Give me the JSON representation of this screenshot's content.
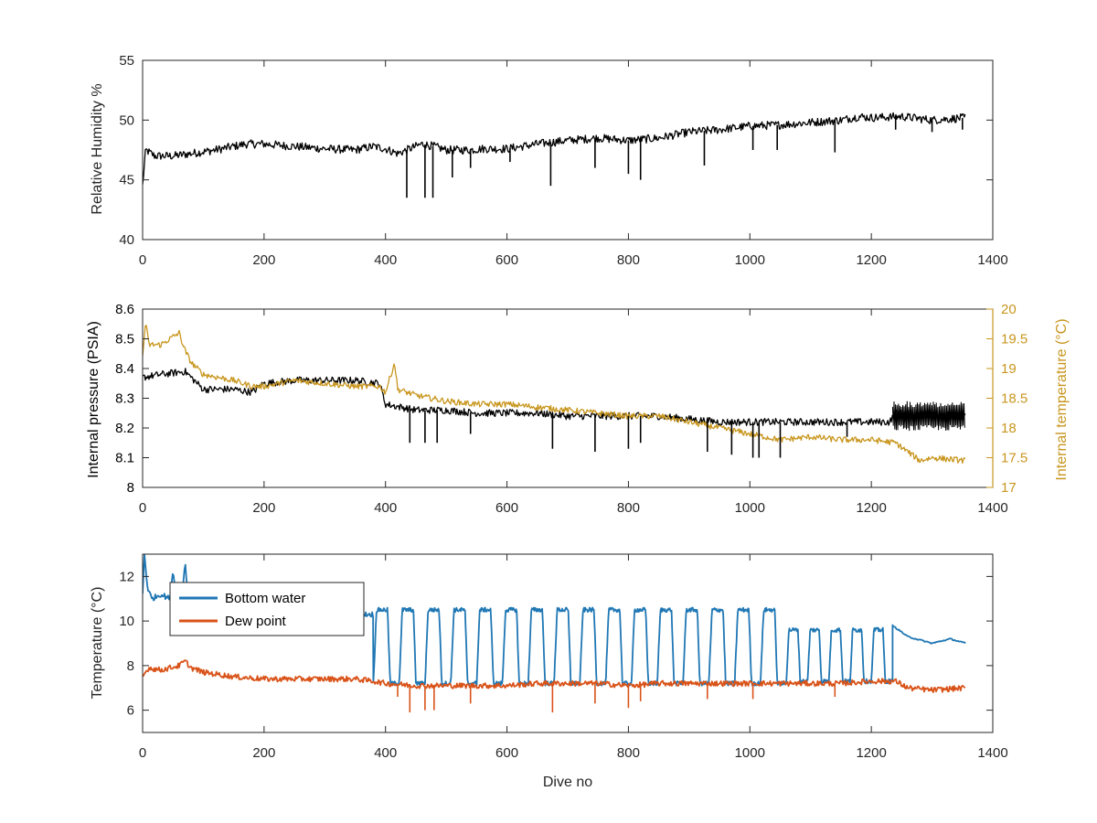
{
  "chart_data": [
    {
      "type": "line",
      "xlabel": "",
      "ylabel": "Relative Humidity %",
      "xlim": [
        0,
        1400
      ],
      "ylim": [
        40,
        55
      ],
      "xticks": [
        "0",
        "200",
        "400",
        "600",
        "800",
        "1000",
        "1200",
        "1400"
      ],
      "yticks": [
        "40",
        "45",
        "50",
        "55"
      ],
      "grid": false,
      "series": [
        {
          "color": "#000000",
          "x": [
            0,
            5,
            20,
            50,
            80,
            120,
            170,
            200,
            250,
            300,
            350,
            380,
            400,
            420,
            440,
            460,
            480,
            500,
            540,
            560,
            600,
            650,
            700,
            750,
            800,
            850,
            900,
            950,
            1000,
            1050,
            1100,
            1150,
            1180,
            1200,
            1250,
            1300,
            1355
          ],
          "y": [
            44.5,
            47.5,
            47.0,
            47.0,
            47.2,
            47.5,
            48.0,
            48.0,
            47.8,
            47.6,
            47.5,
            47.8,
            47.6,
            47.2,
            47.6,
            48.0,
            47.8,
            47.5,
            47.5,
            47.6,
            47.6,
            48.0,
            48.3,
            48.5,
            48.3,
            48.5,
            49.0,
            49.2,
            49.5,
            49.6,
            49.8,
            50.0,
            50.3,
            50.2,
            50.3,
            50.0,
            50.2
          ]
        }
      ],
      "spikes": [
        {
          "x": 435,
          "y": 43.5
        },
        {
          "x": 465,
          "y": 43.5
        },
        {
          "x": 478,
          "y": 43.5
        },
        {
          "x": 510,
          "y": 45.2
        },
        {
          "x": 540,
          "y": 46.0
        },
        {
          "x": 605,
          "y": 46.5
        },
        {
          "x": 672,
          "y": 44.5
        },
        {
          "x": 745,
          "y": 46.0
        },
        {
          "x": 800,
          "y": 45.5
        },
        {
          "x": 820,
          "y": 45.0
        },
        {
          "x": 925,
          "y": 46.2
        },
        {
          "x": 1005,
          "y": 47.5
        },
        {
          "x": 1045,
          "y": 47.5
        },
        {
          "x": 1140,
          "y": 47.3
        },
        {
          "x": 1240,
          "y": 49.2
        },
        {
          "x": 1300,
          "y": 49.0
        },
        {
          "x": 1350,
          "y": 49.2
        }
      ]
    },
    {
      "type": "line",
      "xlabel": "",
      "ylabel": "Internal pressure (PSIA)",
      "ylabel_right": "Internal temperature (°C)",
      "xlim": [
        0,
        1400
      ],
      "ylim": [
        8,
        8.6
      ],
      "ylim_right": [
        17,
        20
      ],
      "xticks": [
        "0",
        "200",
        "400",
        "600",
        "800",
        "1000",
        "1200",
        "1400"
      ],
      "yticks": [
        "8",
        "8.1",
        "8.2",
        "8.3",
        "8.4",
        "8.5",
        "8.6"
      ],
      "yticks_right": [
        "17",
        "17.5",
        "18",
        "18.5",
        "19",
        "19.5",
        "20"
      ],
      "grid": false,
      "series": [
        {
          "axis": "left",
          "color": "#000000",
          "x": [
            0,
            30,
            70,
            100,
            150,
            180,
            200,
            250,
            300,
            350,
            390,
            400,
            450,
            500,
            550,
            600,
            650,
            700,
            750,
            800,
            850,
            900,
            950,
            1000,
            1050,
            1100,
            1150,
            1200,
            1230,
            1240,
            1355
          ],
          "y": [
            8.37,
            8.38,
            8.39,
            8.33,
            8.33,
            8.32,
            8.35,
            8.36,
            8.36,
            8.36,
            8.35,
            8.28,
            8.26,
            8.26,
            8.25,
            8.25,
            8.25,
            8.24,
            8.24,
            8.24,
            8.24,
            8.23,
            8.22,
            8.22,
            8.22,
            8.22,
            8.22,
            8.22,
            8.22,
            8.25,
            8.24
          ]
        },
        {
          "axis": "right",
          "color": "#C8961E",
          "x": [
            0,
            5,
            10,
            30,
            60,
            70,
            80,
            100,
            150,
            180,
            200,
            250,
            300,
            350,
            390,
            400,
            415,
            420,
            450,
            500,
            550,
            600,
            650,
            700,
            750,
            800,
            850,
            900,
            950,
            1000,
            1050,
            1100,
            1150,
            1200,
            1240,
            1260,
            1280,
            1300,
            1355
          ],
          "y": [
            19.2,
            19.8,
            19.4,
            19.4,
            19.6,
            19.3,
            19.1,
            18.9,
            18.8,
            18.7,
            18.7,
            18.8,
            18.75,
            18.7,
            18.7,
            18.6,
            19.1,
            18.65,
            18.55,
            18.45,
            18.4,
            18.4,
            18.35,
            18.3,
            18.25,
            18.2,
            18.2,
            18.1,
            18.0,
            17.9,
            17.8,
            17.85,
            17.8,
            17.8,
            17.75,
            17.6,
            17.45,
            17.5,
            17.45
          ]
        }
      ],
      "spikes": [
        {
          "x": 440,
          "y": 8.15
        },
        {
          "x": 465,
          "y": 8.15
        },
        {
          "x": 485,
          "y": 8.15
        },
        {
          "x": 540,
          "y": 8.18
        },
        {
          "x": 675,
          "y": 8.13
        },
        {
          "x": 745,
          "y": 8.12
        },
        {
          "x": 800,
          "y": 8.13
        },
        {
          "x": 820,
          "y": 8.15
        },
        {
          "x": 930,
          "y": 8.12
        },
        {
          "x": 970,
          "y": 8.11
        },
        {
          "x": 1005,
          "y": 8.1
        },
        {
          "x": 1015,
          "y": 8.1
        },
        {
          "x": 1050,
          "y": 8.1
        },
        {
          "x": 1160,
          "y": 8.17
        }
      ],
      "band": {
        "x_start": 1235,
        "x_end": 1355,
        "y_low": 8.19,
        "y_high": 8.29
      }
    },
    {
      "type": "line",
      "xlabel": "Dive no",
      "ylabel": "Temperature (°C)",
      "xlim": [
        0,
        1400
      ],
      "ylim": [
        5,
        13
      ],
      "xticks": [
        "0",
        "200",
        "400",
        "600",
        "800",
        "1000",
        "1200",
        "1400"
      ],
      "yticks": [
        "6",
        "8",
        "10",
        "12"
      ],
      "grid": false,
      "legend": "top-left",
      "series": [
        {
          "name": "Bottom water",
          "color": "#1F77B4",
          "x": [
            0,
            3,
            8,
            15,
            30,
            45,
            50,
            55,
            60,
            65,
            70,
            75,
            80,
            100,
            150,
            200,
            250,
            300,
            350,
            380
          ],
          "y": [
            11.2,
            13.0,
            11.5,
            11.0,
            11.2,
            11.0,
            12.3,
            11.0,
            11.2,
            11.0,
            12.7,
            11.0,
            10.8,
            10.7,
            10.6,
            10.5,
            10.4,
            10.3,
            10.3,
            10.3
          ],
          "segments": [
            {
              "x_start": 380,
              "x_end": 1060,
              "high": 10.5,
              "low": 7.2,
              "cycles": 16
            },
            {
              "x_start": 1060,
              "x_end": 1235,
              "high": 9.6,
              "low": 7.3,
              "cycles": 5
            }
          ],
          "tail_x": [
            1235,
            1260,
            1300,
            1330,
            1355
          ],
          "tail_y": [
            9.8,
            9.3,
            9.0,
            9.2,
            9.0
          ]
        },
        {
          "name": "Dew point",
          "color": "#D95319",
          "x": [
            0,
            10,
            30,
            60,
            70,
            80,
            100,
            150,
            200,
            250,
            300,
            350,
            380,
            400,
            450,
            500,
            550,
            600,
            650,
            700,
            750,
            800,
            850,
            900,
            950,
            1000,
            1050,
            1100,
            1150,
            1200,
            1240,
            1260,
            1300,
            1355
          ],
          "y": [
            7.5,
            7.9,
            7.8,
            8.0,
            8.2,
            7.9,
            7.7,
            7.5,
            7.4,
            7.4,
            7.4,
            7.4,
            7.3,
            7.2,
            7.1,
            7.1,
            7.1,
            7.1,
            7.2,
            7.2,
            7.2,
            7.1,
            7.2,
            7.2,
            7.2,
            7.2,
            7.2,
            7.2,
            7.2,
            7.3,
            7.3,
            7.0,
            6.9,
            7.0
          ]
        }
      ],
      "spikes": [
        {
          "x": 420,
          "y": 6.6
        },
        {
          "x": 440,
          "y": 5.9
        },
        {
          "x": 465,
          "y": 6.0
        },
        {
          "x": 480,
          "y": 6.0
        },
        {
          "x": 540,
          "y": 6.3
        },
        {
          "x": 675,
          "y": 5.9
        },
        {
          "x": 745,
          "y": 6.3
        },
        {
          "x": 800,
          "y": 6.1
        },
        {
          "x": 820,
          "y": 6.4
        },
        {
          "x": 930,
          "y": 6.5
        },
        {
          "x": 1005,
          "y": 6.5
        },
        {
          "x": 1140,
          "y": 6.6
        }
      ]
    }
  ]
}
